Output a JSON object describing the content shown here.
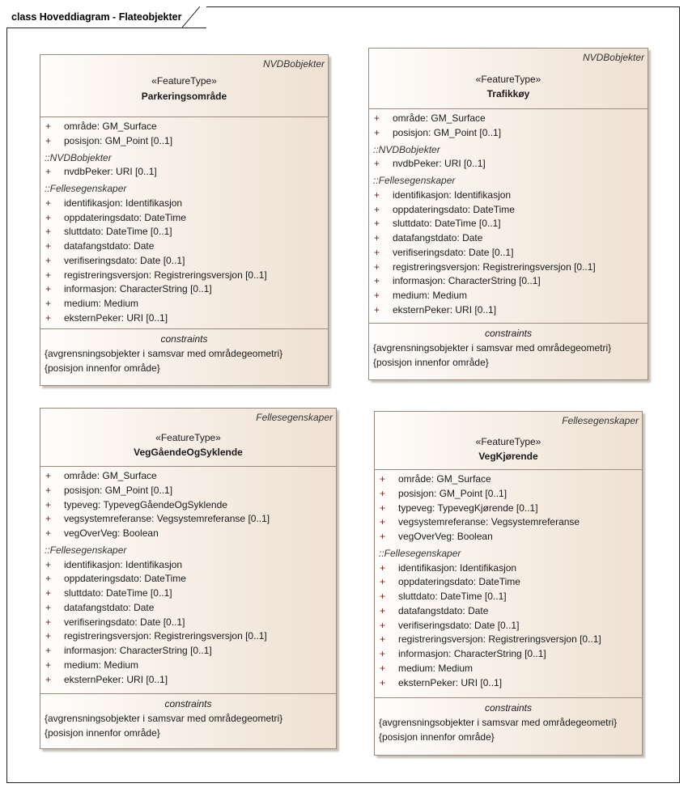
{
  "diagram": {
    "title": "class Hoveddiagram - Flateobjekter"
  },
  "boxes": [
    {
      "package": "NVDBobjekter",
      "stereotype": "«FeatureType»",
      "name": "Parkeringsområde",
      "sections": [
        {
          "group": "",
          "attributes": [
            "område: GM_Surface",
            "posisjon: GM_Point [0..1]"
          ]
        },
        {
          "group": "::NVDBobjekter",
          "attributes": [
            "nvdbPeker: URI [0..1]"
          ]
        },
        {
          "group": "::Fellesegenskaper",
          "attributes": [
            "identifikasjon: Identifikasjon",
            "oppdateringsdato: DateTime",
            "sluttdato: DateTime [0..1]",
            "datafangstdato: Date",
            "verifiseringsdato: Date [0..1]",
            "registreringsversjon: Registreringsversjon [0..1]",
            "informasjon: CharacterString [0..1]",
            "medium: Medium",
            "eksternPeker: URI [0..1]"
          ]
        }
      ],
      "constraints_title": "constraints",
      "constraints": [
        "{avgrensningsobjekter i samsvar med områdegeometri}",
        "{posisjon innenfor område}"
      ]
    },
    {
      "package": "NVDBobjekter",
      "stereotype": "«FeatureType»",
      "name": "Trafikkøy",
      "sections": [
        {
          "group": "",
          "attributes": [
            "område: GM_Surface",
            "posisjon: GM_Point [0..1]"
          ]
        },
        {
          "group": "::NVDBobjekter",
          "attributes": [
            "nvdbPeker: URI [0..1]"
          ]
        },
        {
          "group": "::Fellesegenskaper",
          "attributes": [
            "identifikasjon: Identifikasjon",
            "oppdateringsdato: DateTime",
            "sluttdato: DateTime [0..1]",
            "datafangstdato: Date",
            "verifiseringsdato: Date [0..1]",
            "registreringsversjon: Registreringsversjon [0..1]",
            "informasjon: CharacterString [0..1]",
            "medium: Medium",
            "eksternPeker: URI [0..1]"
          ]
        }
      ],
      "constraints_title": "constraints",
      "constraints": [
        "{avgrensningsobjekter i samsvar med områdegeometri}",
        "{posisjon innenfor område}"
      ]
    },
    {
      "package": "Fellesegenskaper",
      "stereotype": "«FeatureType»",
      "name": "VegGåendeOgSyklende",
      "sections": [
        {
          "group": "",
          "attributes": [
            "område: GM_Surface",
            "posisjon: GM_Point [0..1]",
            "typeveg: TypevegGåendeOgSyklende",
            "vegsystemreferanse: Vegsystemreferanse [0..1]",
            "vegOverVeg: Boolean"
          ]
        },
        {
          "group": "::Fellesegenskaper",
          "attributes": [
            "identifikasjon: Identifikasjon",
            "oppdateringsdato: DateTime",
            "sluttdato: DateTime [0..1]",
            "datafangstdato: Date",
            "verifiseringsdato: Date [0..1]",
            "registreringsversjon: Registreringsversjon [0..1]",
            "informasjon: CharacterString [0..1]",
            "medium: Medium",
            "eksternPeker: URI [0..1]"
          ]
        }
      ],
      "constraints_title": "constraints",
      "constraints": [
        "{avgrensningsobjekter i samsvar med områdegeometri}",
        "{posisjon innenfor område}"
      ]
    },
    {
      "package": "Fellesegenskaper",
      "stereotype": "«FeatureType»",
      "name": "VegKjørende",
      "sections": [
        {
          "group": "",
          "attributes": [
            "område: GM_Surface",
            "posisjon: GM_Point [0..1]",
            "typeveg: TypevegKjørende [0..1]",
            "vegsystemreferanse: Vegsystemreferanse",
            "vegOverVeg: Boolean"
          ]
        },
        {
          "group": "::Fellesegenskaper",
          "attributes": [
            "identifikasjon: Identifikasjon",
            "oppdateringsdato: DateTime",
            "sluttdato: DateTime [0..1]",
            "datafangstdato: Date",
            "verifiseringsdato: Date [0..1]",
            "registreringsversjon: Registreringsversjon [0..1]",
            "informasjon: CharacterString [0..1]",
            "medium: Medium",
            "eksternPeker: URI [0..1]"
          ]
        }
      ],
      "constraints_title": "constraints",
      "constraints": [
        "{avgrensningsobjekter i samsvar med områdegeometri}",
        "{posisjon innenfor område}"
      ]
    }
  ]
}
